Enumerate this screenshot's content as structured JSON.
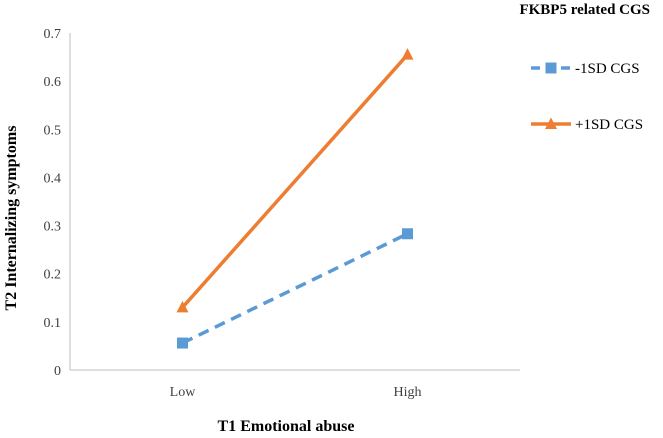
{
  "chart_data": {
    "type": "line",
    "xlabel": "T1 Emotional abuse",
    "ylabel": "T2 Internalizing symptoms",
    "categories": [
      "Low",
      "High"
    ],
    "ylim": [
      0,
      0.7
    ],
    "yticks": [
      "0",
      "0.1",
      "0.2",
      "0.3",
      "0.4",
      "0.5",
      "0.6",
      "0.7"
    ],
    "grid": false,
    "legend": {
      "title": "FKBP5 related CGS",
      "placement": "right"
    },
    "series": [
      {
        "name": "-1SD CGS",
        "values": [
          0.056,
          0.283
        ],
        "color": "#5B9BD5",
        "marker": "square",
        "line_style": "dashed"
      },
      {
        "name": "+1SD CGS",
        "values": [
          0.13,
          0.655
        ],
        "color": "#ED7D31",
        "marker": "triangle",
        "line_style": "solid"
      }
    ]
  }
}
